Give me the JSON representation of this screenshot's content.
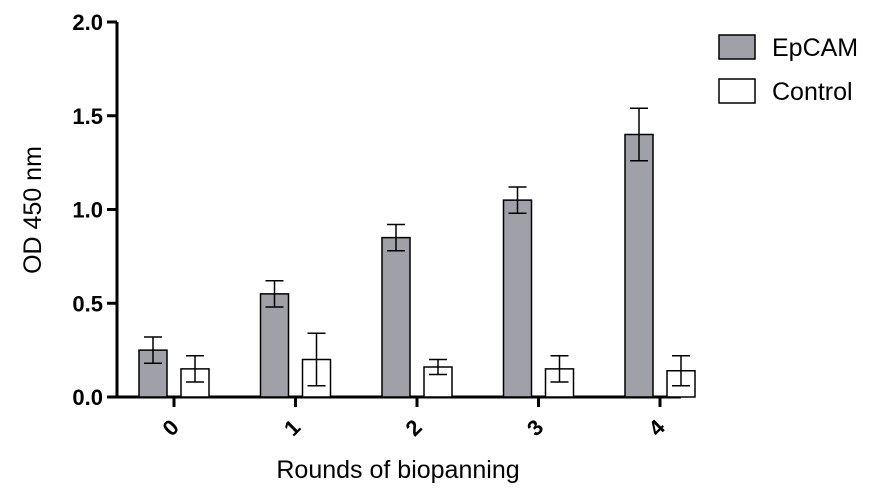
{
  "chart_data": {
    "type": "bar",
    "title": "",
    "xlabel": "Rounds of biopanning",
    "ylabel": "OD 450 nm",
    "ylim": [
      0,
      2.0
    ],
    "yticks": [
      "0.0",
      "0.5",
      "1.0",
      "1.5",
      "2.0"
    ],
    "ytick_values": [
      0,
      0.5,
      1.0,
      1.5,
      2.0
    ],
    "categories": [
      "0",
      "1",
      "2",
      "3",
      "4"
    ],
    "grid": false,
    "legend_position": "top-right",
    "series": [
      {
        "name": "EpCAM",
        "color": "#a0a0a8",
        "values": [
          0.25,
          0.55,
          0.85,
          1.05,
          1.4
        ],
        "errors": [
          0.07,
          0.07,
          0.07,
          0.07,
          0.14
        ]
      },
      {
        "name": "Control",
        "color": "#ffffff",
        "values": [
          0.15,
          0.2,
          0.16,
          0.15,
          0.14
        ],
        "errors": [
          0.07,
          0.14,
          0.04,
          0.07,
          0.08
        ]
      }
    ]
  }
}
